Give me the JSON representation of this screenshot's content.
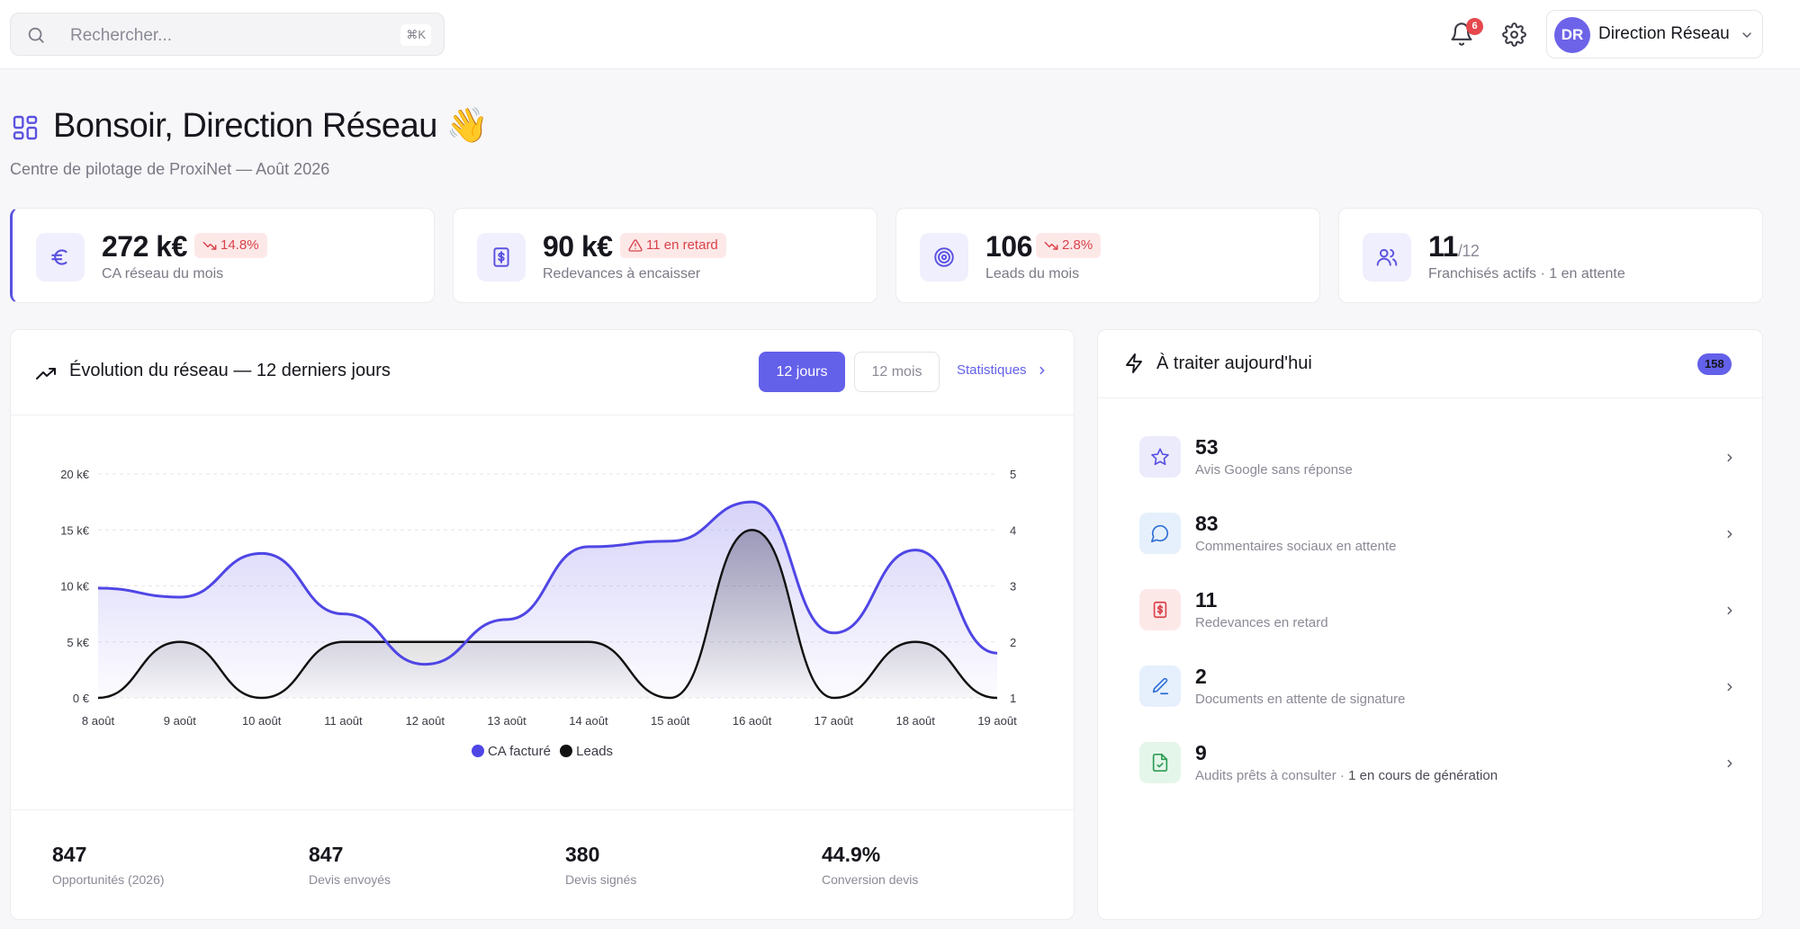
{
  "search": {
    "placeholder": "Rechercher...",
    "shortcut": "⌘K"
  },
  "header": {
    "notifications_count": "6",
    "user": {
      "initials": "DR",
      "name": "Direction Réseau"
    }
  },
  "greeting": {
    "title": "Bonsoir, Direction Réseau",
    "emoji": "👋",
    "subtitle": "Centre de pilotage de ProxiNet — Août 2026"
  },
  "kpis": [
    {
      "value": "272 k€",
      "suffix": "",
      "badge": "14.8%",
      "badge_icon": "trend-down-icon",
      "label": "CA réseau du mois",
      "icon": "euro-icon"
    },
    {
      "value": "90 k€",
      "suffix": "",
      "badge": "11 en retard",
      "badge_icon": "warning-icon",
      "label": "Redevances à encaisser",
      "icon": "invoice-icon"
    },
    {
      "value": "106",
      "suffix": "",
      "badge": "2.8%",
      "badge_icon": "trend-down-icon",
      "label": "Leads du mois",
      "icon": "target-icon"
    },
    {
      "value": "11",
      "suffix": "/12",
      "badge": "",
      "label": "Franchisés actifs · 1 en attente",
      "icon": "users-icon"
    }
  ],
  "evolution": {
    "title": "Évolution du réseau — 12 derniers jours",
    "range_buttons": [
      "12 jours",
      "12 mois"
    ],
    "active_range": "12 jours",
    "stats_link": "Statistiques",
    "stats": [
      {
        "value": "847",
        "label": "Opportunités (2026)"
      },
      {
        "value": "847",
        "label": "Devis envoyés"
      },
      {
        "value": "380",
        "label": "Devis signés"
      },
      {
        "value": "44.9%",
        "label": "Conversion devis"
      }
    ]
  },
  "chart_data": {
    "type": "area",
    "x": [
      "8 août",
      "9 août",
      "10 août",
      "11 août",
      "12 août",
      "13 août",
      "14 août",
      "15 août",
      "16 août",
      "17 août",
      "18 août",
      "19 août"
    ],
    "series": [
      {
        "name": "CA facturé",
        "axis": "left",
        "color": "#4f46e5",
        "values": [
          9.8,
          9,
          12.9,
          7.5,
          3,
          7,
          13.5,
          14,
          17.5,
          5.8,
          13.2,
          4
        ]
      },
      {
        "name": "Leads",
        "axis": "right",
        "color": "#111111",
        "values": [
          1,
          2,
          1,
          2,
          2,
          2,
          2,
          1,
          4,
          1,
          2,
          1
        ]
      }
    ],
    "y_left": {
      "ticks": [
        "0 €",
        "5 k€",
        "10 k€",
        "15 k€",
        "20 k€"
      ],
      "range": [
        0,
        20
      ]
    },
    "y_right": {
      "ticks": [
        "1",
        "2",
        "3",
        "4",
        "5"
      ],
      "range": [
        1,
        5
      ]
    },
    "grid": "horizontal dashed",
    "legend": "bottom-center"
  },
  "today": {
    "title": "À traiter aujourd'hui",
    "count": "158",
    "items": [
      {
        "value": "53",
        "label": "Avis Google sans réponse",
        "extra": "",
        "icon": "star-icon",
        "bg": "#ecebfc",
        "color": "#5b52e0"
      },
      {
        "value": "83",
        "label": "Commentaires sociaux en attente",
        "extra": "",
        "icon": "chat-icon",
        "bg": "#e6f0fd",
        "color": "#2f6fd6"
      },
      {
        "value": "11",
        "label": "Redevances en retard",
        "extra": "",
        "icon": "invoice-icon",
        "bg": "#fde8e8",
        "color": "#d9434a"
      },
      {
        "value": "2",
        "label": "Documents en attente de signature",
        "extra": "",
        "icon": "pen-icon",
        "bg": "#e6f0fd",
        "color": "#2f6fd6"
      },
      {
        "value": "9",
        "label": "Audits prêts à consulter ·",
        "extra": "1 en cours de génération",
        "icon": "file-icon",
        "bg": "#e4f6ea",
        "color": "#2e9d55"
      }
    ]
  },
  "colors": {
    "accent": "#6360ea",
    "danger": "#d9434a",
    "success": "#2e9d55"
  }
}
